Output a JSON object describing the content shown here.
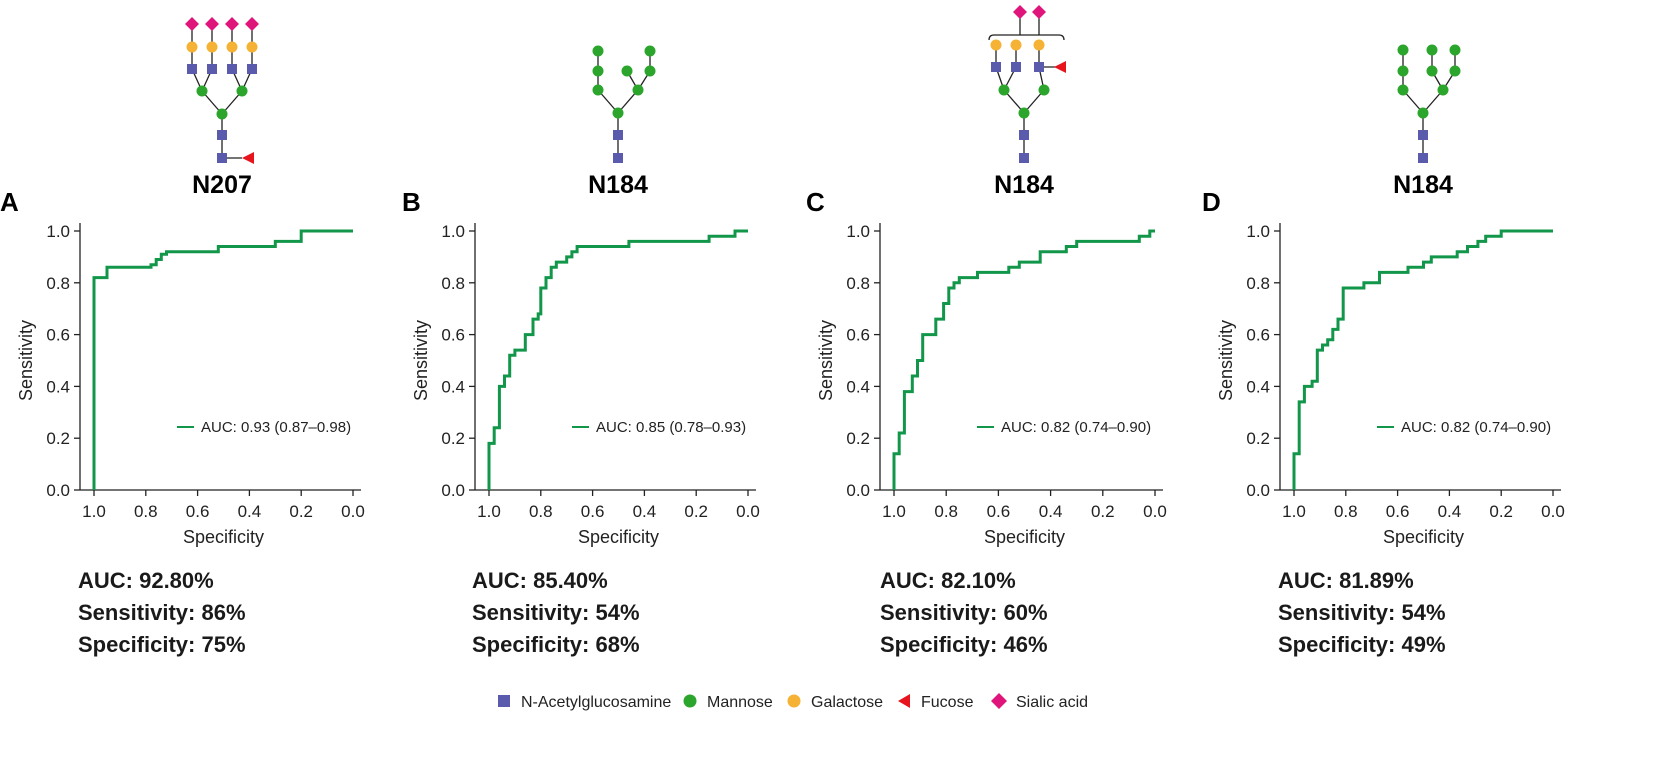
{
  "colors": {
    "roc_line": "#11964a",
    "glcnac": "#5b5bad",
    "mannose": "#2ca52c",
    "galactose": "#f5b234",
    "fucose": "#e8141d",
    "sialic": "#e0157b",
    "axis": "#222222"
  },
  "figure_title": "",
  "axis_ticks": [
    "1.0",
    "0.8",
    "0.6",
    "0.4",
    "0.2",
    "0.0"
  ],
  "y_ticks": [
    "0.0",
    "0.2",
    "0.4",
    "0.6",
    "0.8",
    "1.0"
  ],
  "glycan_key": [
    {
      "label": "N-Acetylglucosamine",
      "shape": "square",
      "color": "#5b5bad"
    },
    {
      "label": "Mannose",
      "shape": "circle",
      "color": "#2ca52c"
    },
    {
      "label": "Galactose",
      "shape": "circle",
      "color": "#f5b234"
    },
    {
      "label": "Fucose",
      "shape": "triangle",
      "color": "#e8141d"
    },
    {
      "label": "Sialic acid",
      "shape": "diamond",
      "color": "#e0157b"
    }
  ],
  "chart_data": [
    {
      "type": "line",
      "panel": "A",
      "site": "N207",
      "glycan": "tetra-antennary sialylated core-fucosylated",
      "xlabel": "Specificity",
      "ylabel": "Sensitivity",
      "xlim": [
        1.0,
        0.0
      ],
      "ylim": [
        0.0,
        1.0
      ],
      "legend": "AUC: 0.93 (0.87–0.98)",
      "stats": [
        "AUC: 92.80%",
        "Sensitivity: 86%",
        "Specificity: 75%"
      ],
      "roc": [
        [
          1.0,
          0.0
        ],
        [
          1.0,
          0.82
        ],
        [
          0.95,
          0.82
        ],
        [
          0.95,
          0.86
        ],
        [
          0.78,
          0.86
        ],
        [
          0.78,
          0.87
        ],
        [
          0.76,
          0.87
        ],
        [
          0.76,
          0.89
        ],
        [
          0.74,
          0.89
        ],
        [
          0.74,
          0.91
        ],
        [
          0.72,
          0.91
        ],
        [
          0.72,
          0.92
        ],
        [
          0.52,
          0.92
        ],
        [
          0.52,
          0.94
        ],
        [
          0.3,
          0.94
        ],
        [
          0.3,
          0.96
        ],
        [
          0.2,
          0.96
        ],
        [
          0.2,
          1.0
        ],
        [
          0.0,
          1.0
        ]
      ]
    },
    {
      "type": "line",
      "panel": "B",
      "site": "N184",
      "glycan": "tri-antennary high mannose",
      "xlabel": "Specificity",
      "ylabel": "Sensitivity",
      "xlim": [
        1.0,
        0.0
      ],
      "ylim": [
        0.0,
        1.0
      ],
      "legend": "AUC: 0.85 (0.78–0.93)",
      "stats": [
        "AUC: 85.40%",
        "Sensitivity: 54%",
        "Specificity: 68%"
      ],
      "roc": [
        [
          1.0,
          0.0
        ],
        [
          1.0,
          0.18
        ],
        [
          0.98,
          0.18
        ],
        [
          0.98,
          0.24
        ],
        [
          0.96,
          0.24
        ],
        [
          0.96,
          0.4
        ],
        [
          0.94,
          0.4
        ],
        [
          0.94,
          0.44
        ],
        [
          0.92,
          0.44
        ],
        [
          0.92,
          0.52
        ],
        [
          0.9,
          0.52
        ],
        [
          0.9,
          0.54
        ],
        [
          0.86,
          0.54
        ],
        [
          0.86,
          0.6
        ],
        [
          0.83,
          0.6
        ],
        [
          0.83,
          0.66
        ],
        [
          0.81,
          0.66
        ],
        [
          0.81,
          0.68
        ],
        [
          0.8,
          0.68
        ],
        [
          0.8,
          0.78
        ],
        [
          0.78,
          0.78
        ],
        [
          0.78,
          0.82
        ],
        [
          0.76,
          0.82
        ],
        [
          0.76,
          0.86
        ],
        [
          0.74,
          0.86
        ],
        [
          0.74,
          0.88
        ],
        [
          0.7,
          0.88
        ],
        [
          0.7,
          0.9
        ],
        [
          0.68,
          0.9
        ],
        [
          0.68,
          0.92
        ],
        [
          0.66,
          0.92
        ],
        [
          0.66,
          0.94
        ],
        [
          0.46,
          0.94
        ],
        [
          0.46,
          0.96
        ],
        [
          0.15,
          0.96
        ],
        [
          0.15,
          0.98
        ],
        [
          0.05,
          0.98
        ],
        [
          0.05,
          1.0
        ],
        [
          0.0,
          1.0
        ]
      ]
    },
    {
      "type": "line",
      "panel": "C",
      "site": "N184",
      "glycan": "tri-antennary sialylated fucosylated",
      "xlabel": "Specificity",
      "ylabel": "Sensitivity",
      "xlim": [
        1.0,
        0.0
      ],
      "ylim": [
        0.0,
        1.0
      ],
      "legend": "AUC: 0.82 (0.74–0.90)",
      "stats": [
        "AUC: 82.10%",
        "Sensitivity: 60%",
        "Specificity: 46%"
      ],
      "roc": [
        [
          1.0,
          0.0
        ],
        [
          1.0,
          0.14
        ],
        [
          0.98,
          0.14
        ],
        [
          0.98,
          0.22
        ],
        [
          0.96,
          0.22
        ],
        [
          0.96,
          0.38
        ],
        [
          0.93,
          0.38
        ],
        [
          0.93,
          0.44
        ],
        [
          0.91,
          0.44
        ],
        [
          0.91,
          0.5
        ],
        [
          0.89,
          0.5
        ],
        [
          0.89,
          0.6
        ],
        [
          0.84,
          0.6
        ],
        [
          0.84,
          0.66
        ],
        [
          0.81,
          0.66
        ],
        [
          0.81,
          0.72
        ],
        [
          0.79,
          0.72
        ],
        [
          0.79,
          0.78
        ],
        [
          0.77,
          0.78
        ],
        [
          0.77,
          0.8
        ],
        [
          0.75,
          0.8
        ],
        [
          0.75,
          0.82
        ],
        [
          0.68,
          0.82
        ],
        [
          0.68,
          0.84
        ],
        [
          0.56,
          0.84
        ],
        [
          0.56,
          0.86
        ],
        [
          0.52,
          0.86
        ],
        [
          0.52,
          0.88
        ],
        [
          0.44,
          0.88
        ],
        [
          0.44,
          0.92
        ],
        [
          0.34,
          0.92
        ],
        [
          0.34,
          0.94
        ],
        [
          0.3,
          0.94
        ],
        [
          0.3,
          0.96
        ],
        [
          0.06,
          0.96
        ],
        [
          0.06,
          0.98
        ],
        [
          0.02,
          0.98
        ],
        [
          0.02,
          1.0
        ],
        [
          0.0,
          1.0
        ]
      ]
    },
    {
      "type": "line",
      "panel": "D",
      "site": "N184",
      "glycan": "tri-antennary high mannose",
      "xlabel": "Specificity",
      "ylabel": "Sensitivity",
      "xlim": [
        1.0,
        0.0
      ],
      "ylim": [
        0.0,
        1.0
      ],
      "legend": "AUC: 0.82 (0.74–0.90)",
      "stats": [
        "AUC: 81.89%",
        "Sensitivity: 54%",
        "Specificity: 49%"
      ],
      "roc": [
        [
          1.0,
          0.0
        ],
        [
          1.0,
          0.14
        ],
        [
          0.98,
          0.14
        ],
        [
          0.98,
          0.34
        ],
        [
          0.96,
          0.34
        ],
        [
          0.96,
          0.4
        ],
        [
          0.93,
          0.4
        ],
        [
          0.93,
          0.42
        ],
        [
          0.91,
          0.42
        ],
        [
          0.91,
          0.54
        ],
        [
          0.89,
          0.54
        ],
        [
          0.89,
          0.56
        ],
        [
          0.87,
          0.56
        ],
        [
          0.87,
          0.58
        ],
        [
          0.85,
          0.58
        ],
        [
          0.85,
          0.62
        ],
        [
          0.83,
          0.62
        ],
        [
          0.83,
          0.66
        ],
        [
          0.81,
          0.66
        ],
        [
          0.81,
          0.78
        ],
        [
          0.73,
          0.78
        ],
        [
          0.73,
          0.8
        ],
        [
          0.67,
          0.8
        ],
        [
          0.67,
          0.84
        ],
        [
          0.56,
          0.84
        ],
        [
          0.56,
          0.86
        ],
        [
          0.5,
          0.86
        ],
        [
          0.5,
          0.88
        ],
        [
          0.47,
          0.88
        ],
        [
          0.47,
          0.9
        ],
        [
          0.37,
          0.9
        ],
        [
          0.37,
          0.92
        ],
        [
          0.33,
          0.92
        ],
        [
          0.33,
          0.94
        ],
        [
          0.29,
          0.94
        ],
        [
          0.29,
          0.96
        ],
        [
          0.26,
          0.96
        ],
        [
          0.26,
          0.98
        ],
        [
          0.2,
          0.98
        ],
        [
          0.2,
          1.0
        ],
        [
          0.0,
          1.0
        ]
      ]
    }
  ]
}
